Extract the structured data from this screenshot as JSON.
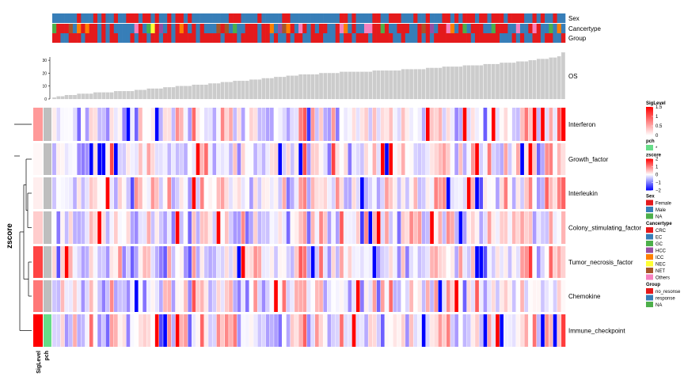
{
  "chart_data": {
    "type": "heatmap",
    "annotation_tracks": [
      "Sex",
      "Cancertype",
      "Group"
    ],
    "bar_track": {
      "label": "OS",
      "ticks": [
        0,
        10,
        20,
        30
      ],
      "ylim": [
        0,
        35
      ],
      "values": [
        1,
        2,
        2,
        3,
        3,
        3,
        4,
        4,
        4,
        4,
        5,
        5,
        5,
        5,
        5,
        6,
        6,
        6,
        6,
        6,
        7,
        7,
        7,
        8,
        8,
        8,
        8,
        9,
        9,
        9,
        10,
        10,
        10,
        10,
        11,
        11,
        11,
        11,
        12,
        12,
        12,
        13,
        13,
        13,
        14,
        14,
        14,
        14,
        15,
        15,
        15,
        16,
        16,
        16,
        17,
        17,
        17,
        18,
        18,
        18,
        19,
        19,
        19,
        19,
        19,
        20,
        20,
        20,
        20,
        20,
        21,
        21,
        21,
        21,
        21,
        21,
        21,
        21,
        22,
        22,
        22,
        22,
        22,
        22,
        22,
        23,
        23,
        23,
        23,
        23,
        23,
        24,
        24,
        24,
        24,
        25,
        25,
        25,
        25,
        25,
        26,
        26,
        26,
        26,
        26,
        27,
        27,
        27,
        27,
        28,
        28,
        28,
        28,
        29,
        29,
        29,
        30,
        30,
        31,
        31,
        31,
        32,
        32,
        33,
        36
      ]
    },
    "rows": [
      "Interferon",
      "Growth_factor",
      "Interleukin",
      "Colony_stimulating_factor",
      "Tumor_necrosis_factor",
      "Chemokine",
      "Immune_checkpoint"
    ],
    "row_title": "zscore",
    "left_annotations": [
      "SigLevel",
      "pch"
    ],
    "siglevel_values": [
      0.6,
      0.05,
      0.1,
      0.3,
      1.1,
      0.8,
      1.55
    ],
    "pch_values": [
      "",
      "",
      "",
      "",
      "",
      "",
      "*"
    ],
    "n_columns": 125,
    "legends": [
      {
        "title": "SigLevel",
        "type": "continuous",
        "labels": [
          "1.5",
          "1",
          "0.5",
          "0"
        ],
        "colors": [
          "#ff0000",
          "#ffffff"
        ]
      },
      {
        "title": "pch",
        "type": "discrete",
        "items": [
          {
            "label": "*",
            "color": "#66dd88"
          }
        ]
      },
      {
        "title": "zscore",
        "type": "continuous",
        "labels": [
          "2",
          "1",
          "0",
          "−1",
          "−2"
        ],
        "colors": [
          "#ff0000",
          "#ffffff",
          "#0000ff"
        ]
      },
      {
        "title": "Sex",
        "type": "discrete",
        "items": [
          {
            "label": "Female",
            "color": "#e41a1c"
          },
          {
            "label": "Male",
            "color": "#377eb8"
          },
          {
            "label": "NA",
            "color": "#4daf4a"
          }
        ]
      },
      {
        "title": "Cancertype",
        "type": "discrete",
        "items": [
          {
            "label": "CRC",
            "color": "#e41a1c"
          },
          {
            "label": "EC",
            "color": "#377eb8"
          },
          {
            "label": "GC",
            "color": "#4daf4a"
          },
          {
            "label": "HCC",
            "color": "#984ea3"
          },
          {
            "label": "ICC",
            "color": "#ff7f00"
          },
          {
            "label": "NEC",
            "color": "#ffff33"
          },
          {
            "label": "NET",
            "color": "#a65628"
          },
          {
            "label": "Others",
            "color": "#f781bf"
          }
        ]
      },
      {
        "title": "Group",
        "type": "discrete",
        "items": [
          {
            "label": "no_resonse",
            "color": "#e41a1c"
          },
          {
            "label": "response",
            "color": "#377eb8"
          },
          {
            "label": "NA",
            "color": "#4daf4a"
          }
        ]
      }
    ],
    "colors": {
      "bar": "#cccccc",
      "bar_border": "#bdbdbd",
      "heat_high": "#ff0000",
      "heat_mid": "#ffffff",
      "heat_low": "#0000ff",
      "pch_star": "#66dd88",
      "pch_none": "#bebebe"
    }
  }
}
